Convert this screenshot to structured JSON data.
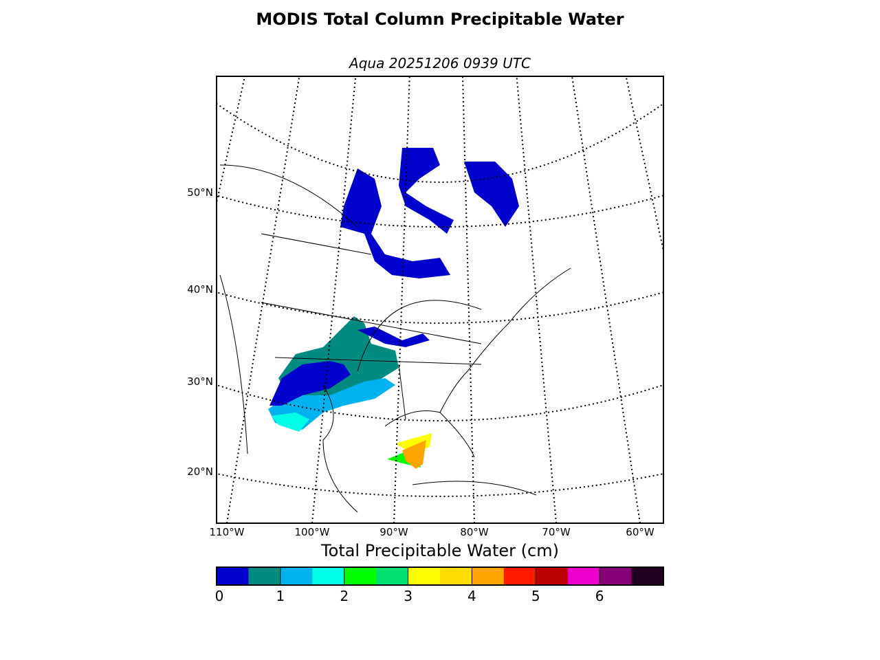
{
  "title": "MODIS Total Column Precipitable Water",
  "subtitle": "Aqua 20251206 0939 UTC",
  "map": {
    "lat_labels": [
      {
        "label": "50°N",
        "lat": 50
      },
      {
        "label": "40°N",
        "lat": 40
      },
      {
        "label": "30°N",
        "lat": 30
      },
      {
        "label": "20°N",
        "lat": 20
      }
    ],
    "lon_labels": [
      {
        "label": "110°W",
        "lon": -110
      },
      {
        "label": "100°W",
        "lon": -100
      },
      {
        "label": "90°W",
        "lon": -90
      },
      {
        "label": "80°W",
        "lon": -80
      },
      {
        "label": "70°W",
        "lon": -70
      },
      {
        "label": "60°W",
        "lon": -60
      }
    ]
  },
  "colorbar": {
    "title": "Total Precipitable Water (cm)",
    "min": 0,
    "max": 7,
    "step": 0.5,
    "ticks": [
      "0",
      "1",
      "2",
      "3",
      "4",
      "5",
      "6"
    ],
    "colors": [
      "#0000cc",
      "#008b80",
      "#00b2ee",
      "#00ffe6",
      "#00ff00",
      "#00e070",
      "#ffff00",
      "#ffdd00",
      "#ffa500",
      "#ff1a00",
      "#bb0000",
      "#ee00cc",
      "#880077",
      "#220022"
    ]
  }
}
